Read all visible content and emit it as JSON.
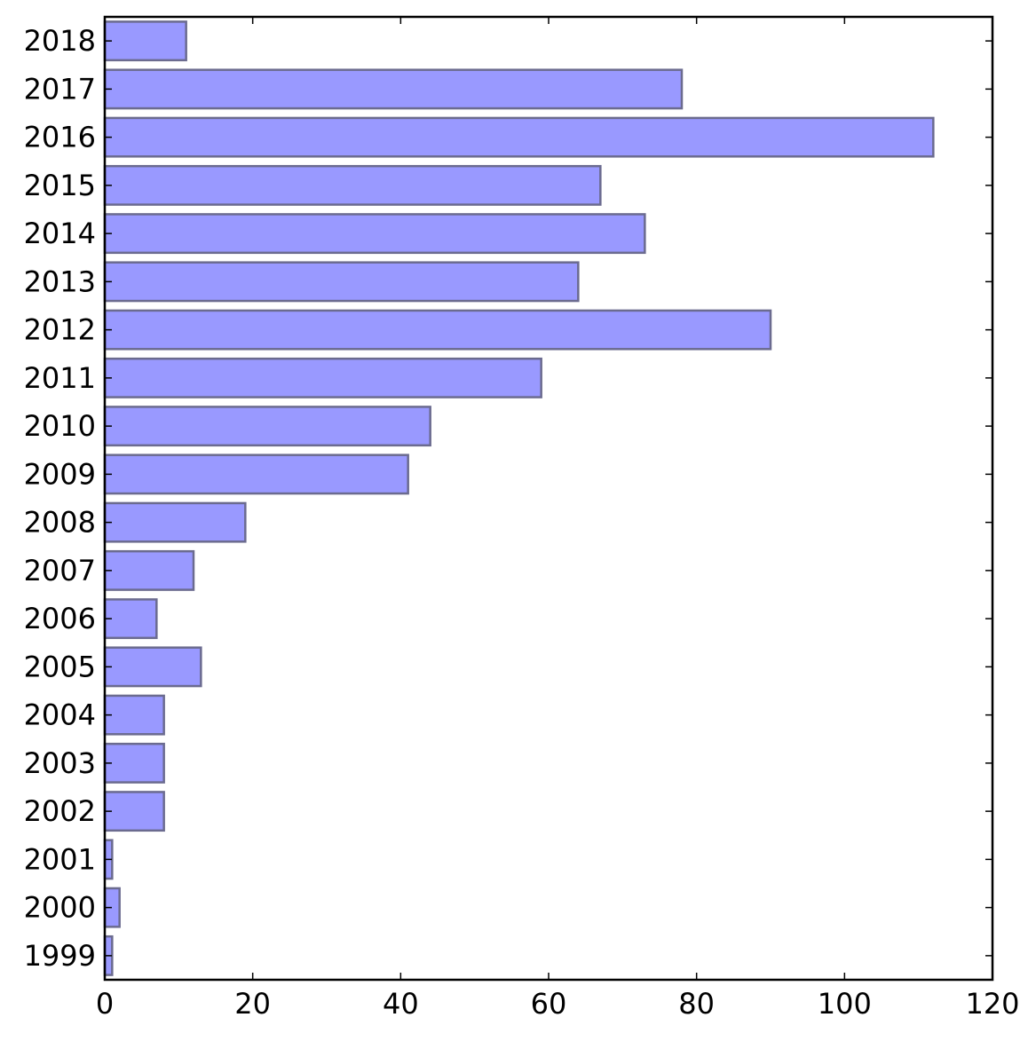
{
  "chart_data": {
    "type": "bar",
    "orientation": "horizontal",
    "categories": [
      "1999",
      "2000",
      "2001",
      "2002",
      "2003",
      "2004",
      "2005",
      "2006",
      "2007",
      "2008",
      "2009",
      "2010",
      "2011",
      "2012",
      "2013",
      "2014",
      "2015",
      "2016",
      "2017",
      "2018"
    ],
    "values": [
      1,
      2,
      1,
      8,
      8,
      8,
      13,
      7,
      12,
      19,
      41,
      44,
      59,
      90,
      64,
      73,
      67,
      112,
      78,
      11
    ],
    "xticks": [
      0,
      20,
      40,
      60,
      80,
      100,
      120
    ],
    "xlim": [
      0,
      120
    ],
    "title": "",
    "xlabel": "",
    "ylabel": "",
    "grid": false,
    "bar_fill": "#9999ff",
    "bar_edge": "#6b6b8f"
  }
}
